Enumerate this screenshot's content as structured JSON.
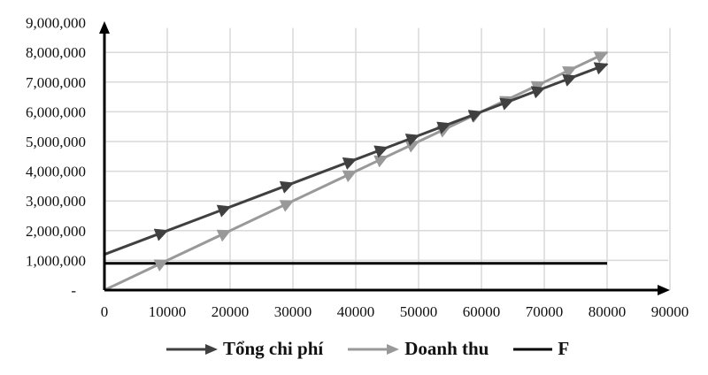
{
  "chart_data": {
    "type": "line",
    "title": "",
    "xlabel": "",
    "ylabel": "",
    "x_ticks": [
      "0",
      "10000",
      "20000",
      "30000",
      "40000",
      "50000",
      "60000",
      "70000",
      "80000",
      "90000"
    ],
    "y_ticks": [
      "-",
      "1,000,000",
      "2,000,000",
      "3,000,000",
      "4,000,000",
      "5,000,000",
      "6,000,000",
      "7,000,000",
      "8,000,000",
      "9,000,000"
    ],
    "xlim": [
      0,
      90000
    ],
    "ylim": [
      0,
      9000000
    ],
    "grid": true,
    "legend_position": "bottom",
    "x": [
      0,
      10000,
      20000,
      30000,
      40000,
      45000,
      50000,
      55000,
      60000,
      65000,
      70000,
      75000,
      80000
    ],
    "series": [
      {
        "name": "Tổng chi phí",
        "color": "#404040",
        "marker": "arrow",
        "values": [
          1200000,
          2000000,
          2800000,
          3600000,
          4400000,
          4800000,
          5200000,
          5600000,
          6000000,
          6400000,
          6800000,
          7200000,
          7600000
        ]
      },
      {
        "name": "Doanh thu",
        "color": "#999999",
        "marker": "arrow",
        "values": [
          0,
          1000000,
          2000000,
          3000000,
          4000000,
          4500000,
          5000000,
          5500000,
          6000000,
          6500000,
          7000000,
          7500000,
          8000000
        ]
      },
      {
        "name": "F",
        "color": "#000000",
        "marker": "none",
        "values": [
          900000,
          900000,
          900000,
          900000,
          900000,
          900000,
          900000,
          900000,
          900000,
          900000,
          900000,
          900000,
          900000
        ]
      }
    ]
  },
  "legend": {
    "items": [
      {
        "label": "Tổng chi phí",
        "color": "#404040",
        "style": "arrow"
      },
      {
        "label": "Doanh thu",
        "color": "#999999",
        "style": "arrow"
      },
      {
        "label": "F",
        "color": "#000000",
        "style": "line"
      }
    ]
  }
}
